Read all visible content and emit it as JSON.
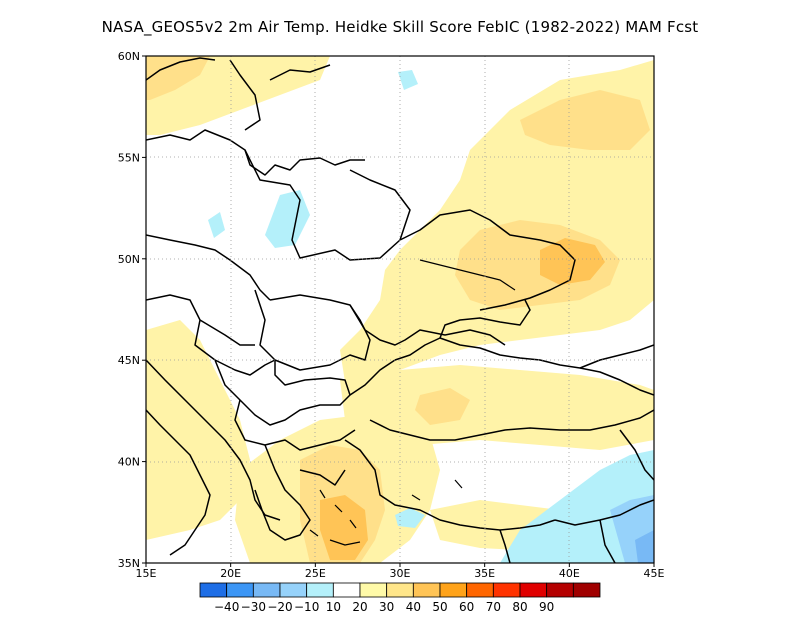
{
  "title": "NASA_GEOS5v2  2m Air Temp. Heidke Skill Score FebIC (1982-2022) MAM Fcst",
  "map": {
    "lon_range": [
      15,
      45
    ],
    "lat_range": [
      35,
      60
    ],
    "lon_ticks": [
      {
        "value": 15,
        "label": "15E"
      },
      {
        "value": 20,
        "label": "20E"
      },
      {
        "value": 25,
        "label": "25E"
      },
      {
        "value": 30,
        "label": "30E"
      },
      {
        "value": 35,
        "label": "35E"
      },
      {
        "value": 40,
        "label": "40E"
      },
      {
        "value": 45,
        "label": "45E"
      }
    ],
    "lat_ticks": [
      {
        "value": 60,
        "label": "60N"
      },
      {
        "value": 55,
        "label": "55N"
      },
      {
        "value": 50,
        "label": "50N"
      },
      {
        "value": 45,
        "label": "45N"
      },
      {
        "value": 40,
        "label": "40N"
      },
      {
        "value": 35,
        "label": "35N"
      }
    ],
    "grid": "dotted",
    "colors": {
      "c20": "#fff3a8",
      "c30": "#ffe08a",
      "c40": "#ffc456",
      "c50": "#ffa31a",
      "cn10": "#b4f0fa",
      "cn20": "#96d2fa",
      "cn30": "#78b9f5"
    }
  },
  "colorbar": {
    "labels": [
      "-40",
      "-30",
      "-20",
      "-10",
      "10",
      "20",
      "30",
      "40",
      "50",
      "60",
      "70",
      "80",
      "90"
    ],
    "colors": [
      "#1e6ee6",
      "#3c96f5",
      "#78b9f5",
      "#96d2fa",
      "#b4f0fa",
      "#ffffff",
      "#fffaa8",
      "#ffe68a",
      "#ffc456",
      "#ffa31a",
      "#ff6600",
      "#ff3300",
      "#e00000",
      "#b40000",
      "#a00000"
    ]
  }
}
